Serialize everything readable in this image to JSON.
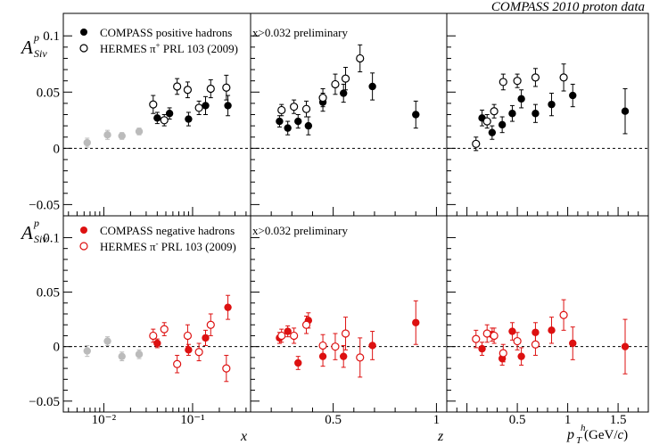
{
  "figure": {
    "title": "COMPASS 2010 proton data",
    "ylabel_main": "A",
    "ylabel_sup": "p",
    "ylabel_sub": "Siv",
    "xlabels": [
      "x",
      "z",
      "p_T^h (GeV/c)"
    ],
    "xlabel_pt_main": "p",
    "xlabel_pt_sub": "T",
    "xlabel_pt_sup": "h",
    "xlabel_pt_unit": " (GeV/",
    "xlabel_pt_unit_c": "c",
    "xlabel_pt_unit_end": ")",
    "top_legend": {
      "compass": "COMPASS positive hadrons",
      "hermes_name": "HERMES π",
      "hermes_charge": "+",
      "hermes_ref": " PRL 103 (2009)",
      "note": "x>0.032 preliminary"
    },
    "bottom_legend": {
      "compass": "COMPASS negative  hadrons",
      "hermes_name": "HERMES π",
      "hermes_charge": "-",
      "hermes_ref": " PRL 103 (2009)",
      "note": "x>0.032  preliminary"
    },
    "colors": {
      "positive": "#000000",
      "negative": "#dd1111",
      "excluded": "#bbbbbb"
    }
  },
  "chart_data": [
    {
      "type": "scatter",
      "panel": "top-left",
      "xscale": "log",
      "xlim": [
        0.0035,
        0.45
      ],
      "ylim": [
        -0.06,
        0.12
      ],
      "xticks": [
        0.01,
        0.1
      ],
      "xtick_labels": [
        "10⁻²",
        "10⁻¹"
      ],
      "yticks": [
        -0.05,
        0,
        0.05,
        0.1
      ],
      "ytick_labels": [
        "−0.05",
        "0",
        "0.05",
        "0.1"
      ],
      "series": [
        {
          "name": "COMPASS positive hadrons",
          "marker": "filled",
          "color": "#000000",
          "points": [
            [
              0.04,
              0.027,
              0.005
            ],
            [
              0.055,
              0.031,
              0.005
            ],
            [
              0.09,
              0.026,
              0.006
            ],
            [
              0.14,
              0.038,
              0.008
            ],
            [
              0.25,
              0.038,
              0.009
            ]
          ]
        },
        {
          "name": "HERMES π+ PRL 103 (2009)",
          "marker": "open",
          "color": "#000000",
          "points": [
            [
              0.036,
              0.039,
              0.008
            ],
            [
              0.048,
              0.025,
              0.005
            ],
            [
              0.067,
              0.055,
              0.007
            ],
            [
              0.088,
              0.052,
              0.007
            ],
            [
              0.118,
              0.036,
              0.006
            ],
            [
              0.16,
              0.053,
              0.008
            ],
            [
              0.24,
              0.054,
              0.011
            ]
          ]
        },
        {
          "marker": "filled",
          "color": "#bbbbbb",
          "points": [
            [
              0.0065,
              0.005,
              0.004
            ],
            [
              0.011,
              0.012,
              0.004
            ],
            [
              0.016,
              0.011,
              0.003
            ],
            [
              0.025,
              0.015,
              0.003
            ]
          ]
        }
      ]
    },
    {
      "type": "scatter",
      "panel": "top-middle",
      "xlim": [
        0.1,
        1.05
      ],
      "ylim": [
        -0.06,
        0.12
      ],
      "xticks": [
        0.5,
        1
      ],
      "xtick_labels": [
        "0.5",
        "1"
      ],
      "series": [
        {
          "name": "COMPASS positive hadrons",
          "marker": "filled",
          "color": "#000000",
          "points": [
            [
              0.24,
              0.024,
              0.005
            ],
            [
              0.28,
              0.018,
              0.006
            ],
            [
              0.33,
              0.024,
              0.006
            ],
            [
              0.38,
              0.02,
              0.008
            ],
            [
              0.45,
              0.041,
              0.008
            ],
            [
              0.55,
              0.049,
              0.008
            ],
            [
              0.69,
              0.055,
              0.012
            ],
            [
              0.9,
              0.03,
              0.012
            ]
          ]
        },
        {
          "name": "HERMES π+ PRL 103 (2009)",
          "marker": "open",
          "color": "#000000",
          "points": [
            [
              0.25,
              0.034,
              0.005
            ],
            [
              0.31,
              0.037,
              0.006
            ],
            [
              0.37,
              0.035,
              0.007
            ],
            [
              0.45,
              0.045,
              0.008
            ],
            [
              0.51,
              0.057,
              0.009
            ],
            [
              0.56,
              0.062,
              0.01
            ],
            [
              0.63,
              0.08,
              0.012
            ]
          ]
        }
      ]
    },
    {
      "type": "scatter",
      "panel": "top-right",
      "xlim": [
        -0.2,
        1.8
      ],
      "ylim": [
        -0.06,
        0.12
      ],
      "xticks": [
        0.5,
        1,
        1.5
      ],
      "xtick_labels": [
        "0.5",
        "1",
        "1.5"
      ],
      "series": [
        {
          "name": "COMPASS positive hadrons",
          "marker": "filled",
          "color": "#000000",
          "points": [
            [
              0.15,
              0.027,
              0.007
            ],
            [
              0.25,
              0.014,
              0.006
            ],
            [
              0.35,
              0.021,
              0.007
            ],
            [
              0.45,
              0.031,
              0.007
            ],
            [
              0.54,
              0.044,
              0.008
            ],
            [
              0.68,
              0.031,
              0.008
            ],
            [
              0.84,
              0.039,
              0.01
            ],
            [
              1.05,
              0.047,
              0.01
            ],
            [
              1.57,
              0.033,
              0.02
            ]
          ]
        },
        {
          "name": "HERMES π+ PRL 103 (2009)",
          "marker": "open",
          "color": "#000000",
          "points": [
            [
              0.09,
              0.004,
              0.006
            ],
            [
              0.2,
              0.024,
              0.006
            ],
            [
              0.27,
              0.033,
              0.006
            ],
            [
              0.36,
              0.059,
              0.007
            ],
            [
              0.5,
              0.06,
              0.006
            ],
            [
              0.68,
              0.063,
              0.008
            ],
            [
              0.96,
              0.063,
              0.012
            ]
          ]
        }
      ]
    },
    {
      "type": "scatter",
      "panel": "bottom-left",
      "xscale": "log",
      "xlim": [
        0.0035,
        0.45
      ],
      "ylim": [
        -0.06,
        0.12
      ],
      "xticks": [
        0.01,
        0.1
      ],
      "xtick_labels": [
        "10⁻²",
        "10⁻¹"
      ],
      "yticks": [
        -0.05,
        0,
        0.05,
        0.1
      ],
      "ytick_labels": [
        "−0.05",
        "0",
        "0.05",
        "0.1"
      ],
      "series": [
        {
          "name": "COMPASS negative  hadrons",
          "marker": "filled",
          "color": "#dd1111",
          "points": [
            [
              0.04,
              0.003,
              0.004
            ],
            [
              0.09,
              -0.003,
              0.005
            ],
            [
              0.14,
              0.008,
              0.007
            ],
            [
              0.25,
              0.036,
              0.011
            ]
          ]
        },
        {
          "name": "HERMES π- PRL 103 (2009)",
          "marker": "open",
          "color": "#dd1111",
          "points": [
            [
              0.036,
              0.01,
              0.006
            ],
            [
              0.048,
              0.016,
              0.006
            ],
            [
              0.067,
              -0.016,
              0.008
            ],
            [
              0.088,
              0.01,
              0.01
            ],
            [
              0.118,
              -0.005,
              0.008
            ],
            [
              0.16,
              0.02,
              0.01
            ],
            [
              0.24,
              -0.02,
              0.012
            ]
          ]
        },
        {
          "marker": "filled",
          "color": "#bbbbbb",
          "points": [
            [
              0.0065,
              -0.004,
              0.005
            ],
            [
              0.011,
              0.005,
              0.004
            ],
            [
              0.016,
              -0.009,
              0.004
            ],
            [
              0.025,
              -0.007,
              0.004
            ]
          ]
        }
      ]
    },
    {
      "type": "scatter",
      "panel": "bottom-middle",
      "xlim": [
        0.1,
        1.05
      ],
      "ylim": [
        -0.06,
        0.12
      ],
      "xticks": [
        0.5,
        1
      ],
      "xtick_labels": [
        "0.5",
        "1"
      ],
      "series": [
        {
          "name": "COMPASS negative  hadrons",
          "marker": "filled",
          "color": "#dd1111",
          "points": [
            [
              0.24,
              0.008,
              0.005
            ],
            [
              0.28,
              0.014,
              0.005
            ],
            [
              0.33,
              -0.015,
              0.006
            ],
            [
              0.38,
              0.024,
              0.007
            ],
            [
              0.45,
              -0.009,
              0.009
            ],
            [
              0.55,
              -0.009,
              0.01
            ],
            [
              0.69,
              0.001,
              0.013
            ],
            [
              0.9,
              0.022,
              0.02
            ]
          ]
        },
        {
          "name": "HERMES π- PRL 103 (2009)",
          "marker": "open",
          "color": "#dd1111",
          "points": [
            [
              0.25,
              0.01,
              0.006
            ],
            [
              0.31,
              0.01,
              0.007
            ],
            [
              0.37,
              0.02,
              0.008
            ],
            [
              0.45,
              0.001,
              0.01
            ],
            [
              0.51,
              0.0,
              0.012
            ],
            [
              0.56,
              0.012,
              0.015
            ],
            [
              0.63,
              -0.01,
              0.018
            ]
          ]
        }
      ]
    },
    {
      "type": "scatter",
      "panel": "bottom-right",
      "xlim": [
        -0.2,
        1.8
      ],
      "ylim": [
        -0.06,
        0.12
      ],
      "xticks": [
        0.5,
        1,
        1.5
      ],
      "xtick_labels": [
        "0.5",
        "1",
        "1.5"
      ],
      "series": [
        {
          "name": "COMPASS negative  hadrons",
          "marker": "filled",
          "color": "#dd1111",
          "points": [
            [
              0.15,
              -0.002,
              0.006
            ],
            [
              0.25,
              0.011,
              0.006
            ],
            [
              0.35,
              -0.011,
              0.006
            ],
            [
              0.45,
              0.014,
              0.008
            ],
            [
              0.54,
              -0.009,
              0.008
            ],
            [
              0.68,
              0.013,
              0.009
            ],
            [
              0.84,
              0.015,
              0.012
            ],
            [
              1.05,
              0.003,
              0.015
            ],
            [
              1.57,
              0.0,
              0.025
            ]
          ]
        },
        {
          "name": "HERMES π- PRL 103 (2009)",
          "marker": "open",
          "color": "#dd1111",
          "points": [
            [
              0.09,
              0.007,
              0.008
            ],
            [
              0.2,
              0.012,
              0.008
            ],
            [
              0.27,
              0.01,
              0.007
            ],
            [
              0.36,
              -0.006,
              0.008
            ],
            [
              0.5,
              0.005,
              0.008
            ],
            [
              0.68,
              0.002,
              0.01
            ],
            [
              0.96,
              0.029,
              0.014
            ]
          ]
        }
      ]
    }
  ]
}
